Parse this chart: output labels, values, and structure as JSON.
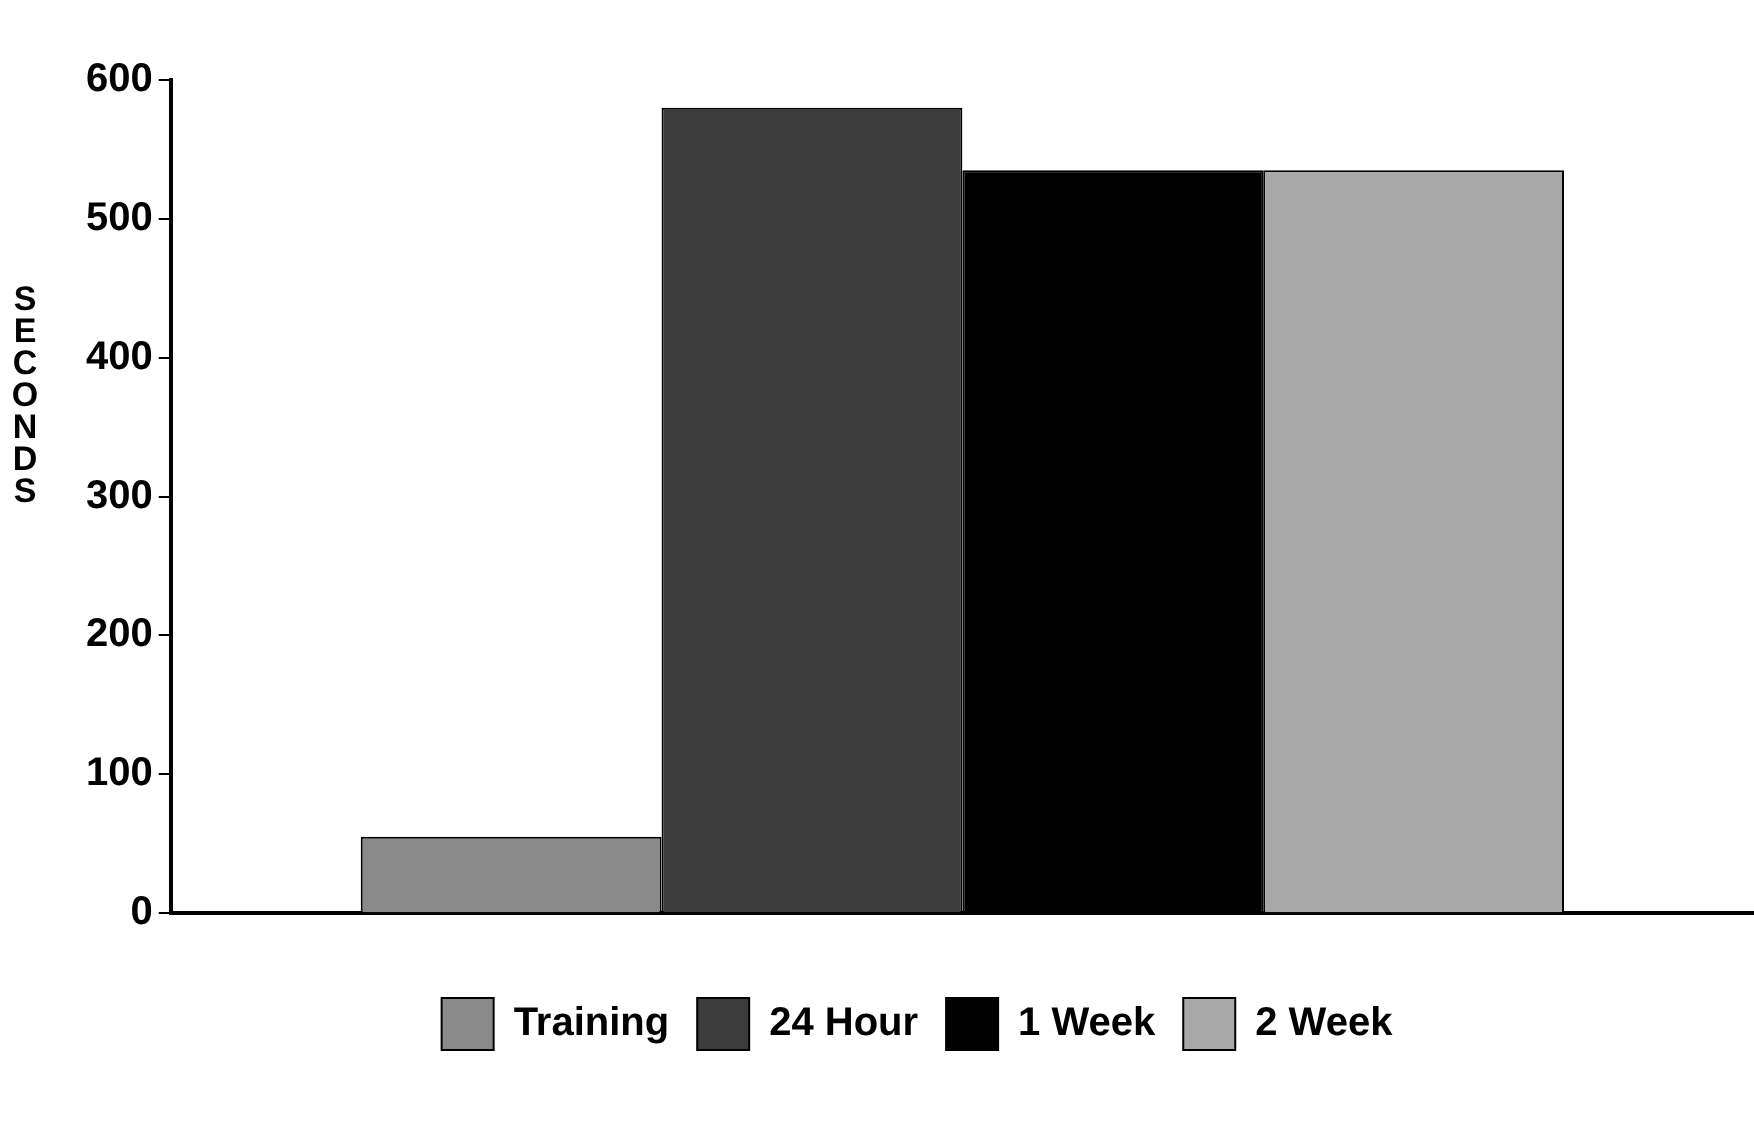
{
  "chart_data": {
    "type": "bar",
    "ylabel": "SECONDS",
    "categories": [
      null
    ],
    "series": [
      {
        "name": "Training",
        "color": "#8a8a8a",
        "values": [
          55
        ]
      },
      {
        "name": "24 Hour",
        "color": "#3c3c3c",
        "values": [
          580
        ]
      },
      {
        "name": "1 Week",
        "color": "#000000",
        "values": [
          535
        ]
      },
      {
        "name": "2 Week",
        "color": "#a8a8a8",
        "values": [
          535
        ]
      }
    ],
    "ylim": [
      0,
      600
    ],
    "yticks": [
      0,
      100,
      200,
      300,
      400,
      500,
      600
    ],
    "grid": false,
    "legend": "bottom"
  }
}
